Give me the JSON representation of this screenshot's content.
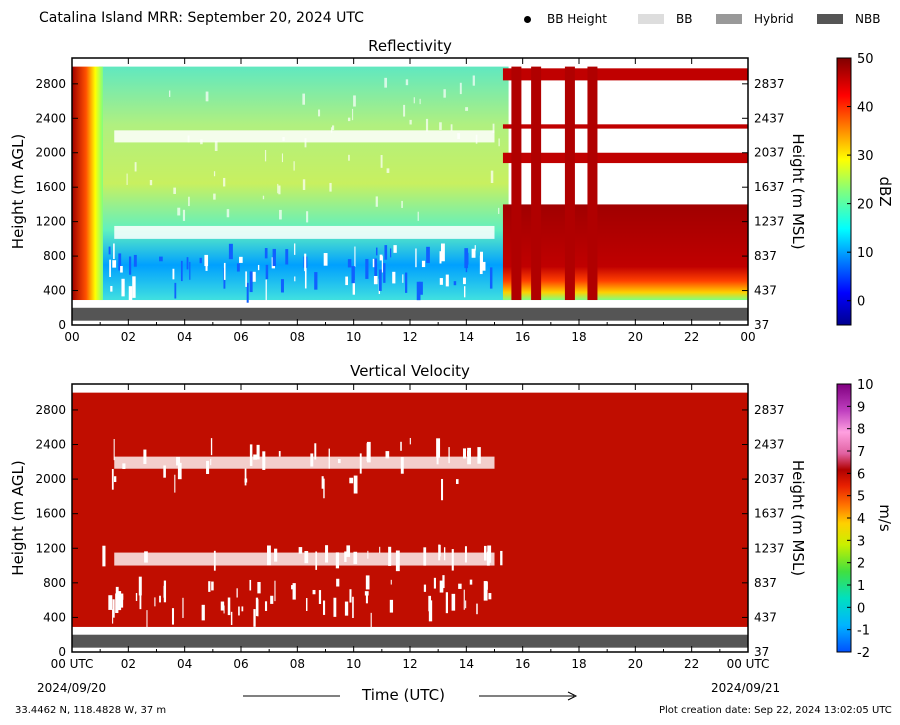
{
  "header": {
    "title": "Catalina Island MRR:  September 20, 2024 UTC",
    "legend": [
      {
        "label": "BB Height",
        "kind": "dot",
        "color": "#000000"
      },
      {
        "label": "BB",
        "kind": "swatch",
        "color": "#dddddd"
      },
      {
        "label": "Hybrid",
        "kind": "swatch",
        "color": "#999999"
      },
      {
        "label": "NBB",
        "kind": "swatch",
        "color": "#555555"
      }
    ]
  },
  "footer": {
    "location": "33.4462 N, 118.4828 W, 37 m",
    "creation": "Plot creation date: Sep 22, 2024 13:02:05 UTC",
    "xlabel": "Time (UTC)",
    "start_date": "2024/09/20",
    "end_date": "2024/09/21"
  },
  "chart_data": [
    {
      "type": "heatmap",
      "title": "Reflectivity",
      "ylabel": "Height (m AGL)",
      "ylabel_right": "Height (m MSL)",
      "x_ticks": [
        "00",
        "02",
        "04",
        "06",
        "08",
        "10",
        "12",
        "14",
        "16",
        "18",
        "20",
        "22",
        "00"
      ],
      "y_ticks": [
        0,
        400,
        800,
        1200,
        1600,
        2000,
        2400,
        2800
      ],
      "y_ticks_right": [
        37,
        437,
        837,
        1237,
        1637,
        2037,
        2437,
        2837
      ],
      "ylim": [
        0,
        3100
      ],
      "xlim": [
        0,
        24
      ],
      "colorbar": {
        "label": "dBZ",
        "ticks": [
          0,
          10,
          20,
          30,
          40,
          50
        ],
        "range": [
          -5,
          50
        ]
      },
      "bright_band_type": "NBB",
      "bright_band_color": "#555555",
      "bright_band_height_range": [
        50,
        200
      ],
      "regimes": [
        {
          "x_range": [
            0.0,
            0.8
          ],
          "description": "deep precipitation, high reflectivity",
          "dbz": 45
        },
        {
          "x_range": [
            0.8,
            15.5
          ],
          "description": "low reflectivity fog/drizzle layers",
          "dbz": 18
        },
        {
          "x_range": [
            15.5,
            24.0
          ],
          "description": "high reflectivity layers",
          "dbz": 42
        }
      ]
    },
    {
      "type": "heatmap",
      "title": "Vertical Velocity",
      "ylabel": "Height (m AGL)",
      "ylabel_right": "Height (m MSL)",
      "x_ticks": [
        "00 UTC",
        "02",
        "04",
        "06",
        "08",
        "10",
        "12",
        "14",
        "16",
        "18",
        "20",
        "22",
        "00 UTC"
      ],
      "y_ticks": [
        0,
        400,
        800,
        1200,
        1600,
        2000,
        2400,
        2800
      ],
      "y_ticks_right": [
        37,
        437,
        837,
        1237,
        1637,
        2037,
        2437,
        2837
      ],
      "ylim": [
        0,
        3100
      ],
      "xlim": [
        0,
        24
      ],
      "colorbar": {
        "label": "m/s",
        "ticks": [
          -2,
          -1,
          0,
          1,
          2,
          3,
          4,
          5,
          6,
          7,
          8,
          9,
          10
        ],
        "range": [
          -2,
          10
        ]
      },
      "bright_band_type": "NBB",
      "bright_band_color": "#555555",
      "bright_band_height_range": [
        50,
        200
      ],
      "dominant_value": 6
    }
  ]
}
